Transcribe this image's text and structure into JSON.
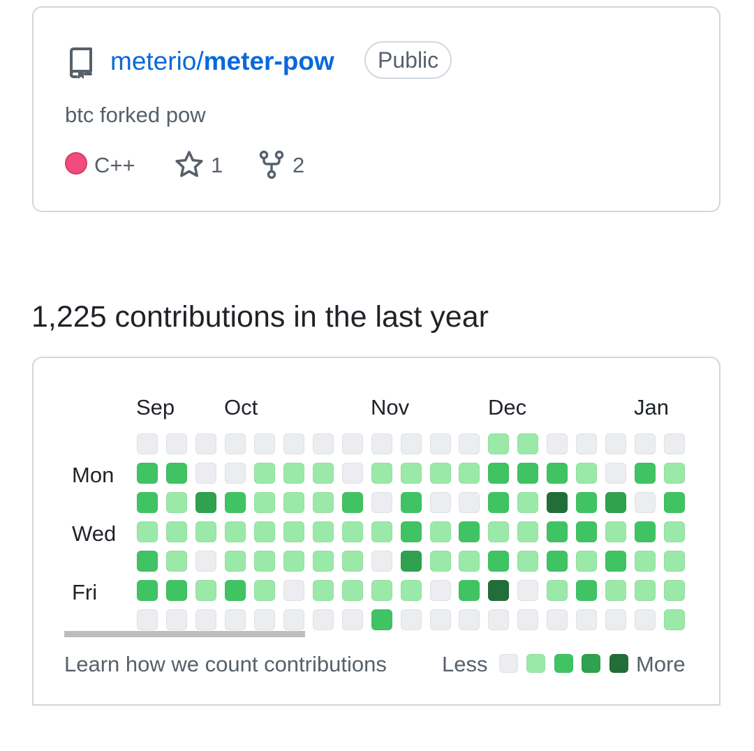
{
  "repo": {
    "owner": "meterio/",
    "name": "meter-pow",
    "visibility": "Public",
    "description": "btc forked pow",
    "language": "C++",
    "language_color": "#f34b7d",
    "stars": "1",
    "forks": "2",
    "icons": [
      "repo-icon",
      "star-icon",
      "fork-icon"
    ]
  },
  "contributions": {
    "heading": "1,225 contributions in the last year",
    "months": [
      "Sep",
      "Oct",
      "Nov",
      "Dec",
      "Jan"
    ],
    "days": [
      "Mon",
      "Wed",
      "Fri"
    ],
    "levels": [
      [
        0,
        2,
        2,
        1,
        2,
        2,
        0
      ],
      [
        0,
        2,
        1,
        1,
        1,
        2,
        0
      ],
      [
        0,
        0,
        3,
        1,
        0,
        1,
        0
      ],
      [
        0,
        0,
        2,
        1,
        1,
        2,
        0
      ],
      [
        0,
        1,
        1,
        1,
        1,
        1,
        0
      ],
      [
        0,
        1,
        1,
        1,
        1,
        0,
        0
      ],
      [
        0,
        1,
        1,
        1,
        1,
        1,
        0
      ],
      [
        0,
        0,
        2,
        1,
        1,
        1,
        0
      ],
      [
        0,
        1,
        0,
        1,
        0,
        1,
        2
      ],
      [
        0,
        1,
        2,
        2,
        3,
        1,
        0
      ],
      [
        0,
        1,
        0,
        1,
        1,
        0,
        0
      ],
      [
        0,
        1,
        0,
        2,
        1,
        2,
        0
      ],
      [
        1,
        2,
        2,
        1,
        2,
        4,
        0
      ],
      [
        1,
        2,
        1,
        1,
        1,
        0,
        0
      ],
      [
        0,
        2,
        4,
        2,
        2,
        1,
        0
      ],
      [
        0,
        1,
        2,
        2,
        1,
        2,
        0
      ],
      [
        0,
        0,
        3,
        1,
        2,
        1,
        0
      ],
      [
        0,
        2,
        0,
        2,
        1,
        1,
        0
      ],
      [
        0,
        1,
        2,
        1,
        1,
        1,
        1
      ]
    ],
    "learn_link": "Learn how we count contributions",
    "legend_less": "Less",
    "legend_more": "More",
    "legend_colors": [
      "#ebedf0",
      "#9be9a8",
      "#40c463",
      "#30a14e",
      "#216e39"
    ]
  }
}
